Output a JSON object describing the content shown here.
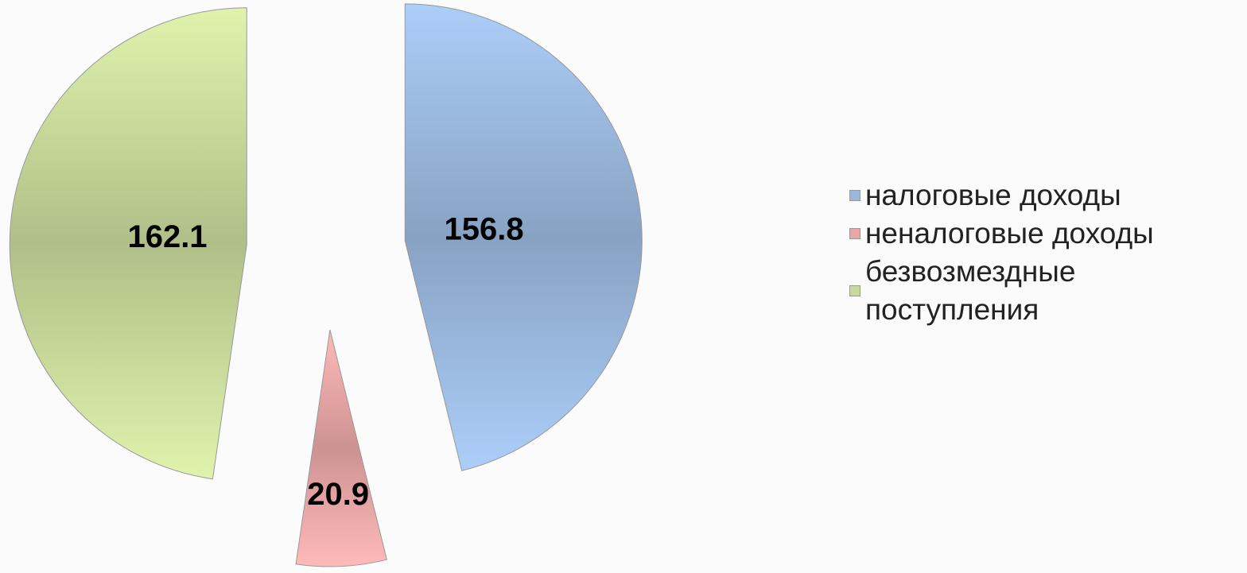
{
  "chart_data": {
    "type": "pie",
    "categories": [
      "налоговые доходы",
      "неналоговые доходы",
      "безвозмездные поступления"
    ],
    "values": [
      156.8,
      20.9,
      162.1
    ],
    "colors": [
      "#9ab8de",
      "#eaa6a6",
      "#c8d99a"
    ],
    "exploded": true
  }
}
